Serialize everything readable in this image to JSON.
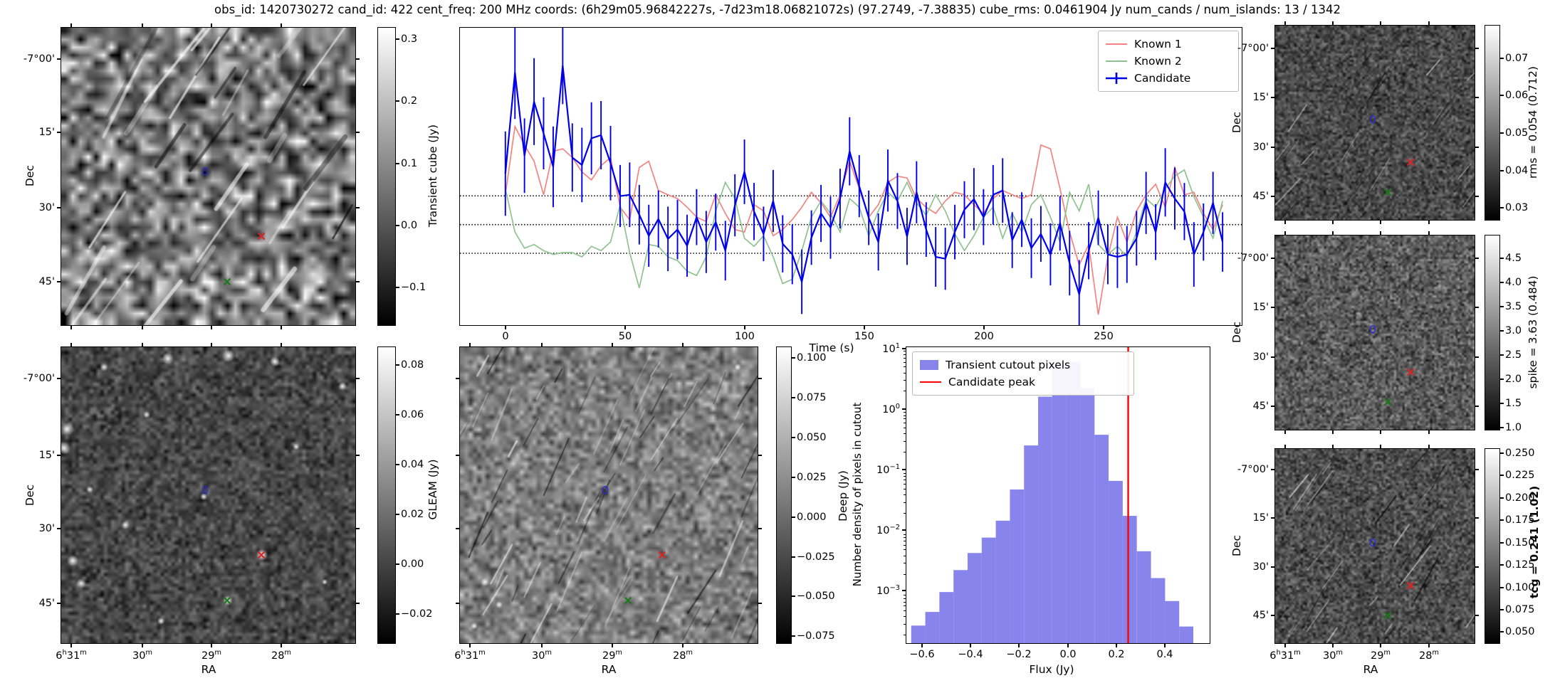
{
  "title": "obs_id: 1420730272 cand_id: 422 cent_freq: 200 MHz coords: (6h29m05.96842227s, -7d23m18.06821072s) (97.2749, -7.38835) cube_rms: 0.0461904 Jy num_cands / num_islands: 13 / 1342",
  "axes": {
    "dec_label": "Dec",
    "ra_label": "RA",
    "dec_ticks": [
      "-7°00'",
      "15'",
      "30'",
      "45'"
    ],
    "ra_ticks": [
      "6h31m",
      "30m",
      "29m",
      "28m"
    ]
  },
  "panels": {
    "transient_cube": {
      "colorbar_label": "Transient cube (Jy)",
      "colorbar_ticks": [
        "0.3",
        "0.2",
        "0.1",
        "0.0",
        "−0.1"
      ]
    },
    "gleam": {
      "colorbar_label": "GLEAM (Jy)",
      "colorbar_ticks": [
        "0.08",
        "0.06",
        "0.04",
        "0.02",
        "0.00",
        "−0.02"
      ]
    },
    "deep": {
      "colorbar_label": "Deep (Jy)",
      "colorbar_ticks": [
        "0.100",
        "0.075",
        "0.050",
        "0.025",
        "0.000",
        "−0.025",
        "−0.050",
        "−0.075"
      ]
    },
    "rms": {
      "colorbar_label": "rms = 0.054 (0.712)",
      "colorbar_ticks": [
        "0.07",
        "0.06",
        "0.05",
        "0.04",
        "0.03"
      ]
    },
    "spike": {
      "colorbar_label": "spike = 3.63 (0.484)",
      "colorbar_ticks": [
        "4.5",
        "4.0",
        "3.5",
        "3.0",
        "2.5",
        "2.0",
        "1.5",
        "1.0"
      ]
    },
    "tcg": {
      "colorbar_label": "tcg = 0.241 (1.02)",
      "colorbar_ticks": [
        "0.250",
        "0.225",
        "0.200",
        "0.175",
        "0.150",
        "0.125",
        "0.100",
        "0.075",
        "0.050"
      ]
    }
  },
  "markers": {
    "candidate": {
      "shape": "contour",
      "color": "#2a2ad0"
    },
    "known1": {
      "shape": "x",
      "color": "#dd2222"
    },
    "known2": {
      "shape": "x",
      "color": "#1a7a1a"
    }
  },
  "chart_data": [
    {
      "type": "line",
      "xlabel": "Time (s)",
      "x_ticks": [
        0,
        50,
        100,
        150,
        200,
        250
      ],
      "x_tick_labels": [
        "0",
        "50",
        "100",
        "150",
        "200",
        "250"
      ],
      "xlim": [
        -19,
        308
      ],
      "ylim_jy": [
        -0.162,
        0.317
      ],
      "dotted_hlines_jy": [
        0.0462,
        0,
        -0.0462
      ],
      "legend_position": "upper right",
      "x_start": 0,
      "x_step": 4,
      "series": [
        {
          "name": "Known 1",
          "color": "#f4837f",
          "values": [
            0.048,
            0.158,
            0.128,
            0.102,
            0.048,
            0.118,
            0.122,
            0.108,
            0.085,
            0.072,
            0.095,
            0.108,
            0.028,
            0.008,
            0.092,
            0.102,
            0.055,
            0.048,
            0.042,
            0.028,
            0.012,
            0.005,
            0.048,
            0.018,
            -0.008,
            -0.012,
            0.032,
            0.022,
            -0.018,
            -0.008,
            0.008,
            0.028,
            0.052,
            0.035,
            0.012,
            0.048,
            0.102,
            0.058,
            0.012,
            0.032,
            0.068,
            0.078,
            0.075,
            0.042,
            0.028,
            0.018,
            0.038,
            0.052,
            0.048,
            0.032,
            0.018,
            0.042,
            0.055,
            0.048,
            0.042,
            0.048,
            0.128,
            0.122,
            0.058,
            -0.012,
            -0.065,
            -0.032,
            -0.145,
            -0.052,
            0.012,
            -0.028,
            0.022,
            0.048,
            0.065,
            0.028,
            0.092,
            0.048,
            0.052,
            0.018,
            -0.008,
            0.032
          ]
        },
        {
          "name": "Known 2",
          "color": "#8fc28f",
          "values": [
            0.058,
            -0.012,
            -0.038,
            -0.032,
            -0.042,
            -0.048,
            -0.045,
            -0.045,
            -0.052,
            -0.035,
            -0.042,
            -0.028,
            0.032,
            -0.045,
            -0.102,
            -0.032,
            -0.035,
            -0.052,
            -0.058,
            -0.075,
            -0.082,
            -0.052,
            0.022,
            0.068,
            0.042,
            -0.022,
            -0.035,
            -0.018,
            -0.052,
            -0.095,
            -0.088,
            -0.042,
            0.012,
            0.038,
            0.018,
            -0.012,
            0.042,
            0.028,
            -0.018,
            0.022,
            0.052,
            0.038,
            0.068,
            0.035,
            0.015,
            0.048,
            0.022,
            -0.015,
            -0.042,
            -0.018,
            0.012,
            0.028,
            -0.022,
            0.018,
            -0.012,
            0.032,
            0.048,
            0.012,
            -0.028,
            0.052,
            0.022,
            0.065,
            -0.032,
            -0.048,
            -0.035,
            -0.052,
            -0.012,
            0.042,
            0.028,
            0.058,
            0.078,
            0.088,
            0.045,
            0.012,
            -0.022,
            0.038
          ]
        },
        {
          "name": "Candidate",
          "color": "#0000e8",
          "values": [
            0.082,
            0.245,
            0.111,
            0.198,
            0.147,
            0.093,
            0.256,
            0.108,
            0.096,
            0.139,
            0.144,
            0.099,
            0.046,
            0.048,
            0.016,
            -0.018,
            0.009,
            -0.023,
            -0.008,
            -0.034,
            0.012,
            -0.028,
            0.004,
            -0.042,
            0.031,
            0.085,
            0.021,
            -0.015,
            0.038,
            -0.031,
            -0.048,
            -0.092,
            -0.021,
            0.018,
            -0.005,
            0.042,
            0.118,
            0.062,
            0.011,
            -0.028,
            0.071,
            0.038,
            -0.019,
            0.052,
            -0.008,
            -0.052,
            -0.055,
            -0.012,
            0.024,
            0.041,
            0.012,
            0.048,
            0.055,
            -0.025,
            0.008,
            -0.038,
            -0.015,
            -0.048,
            0.002,
            -0.062,
            -0.112,
            -0.042,
            0.011,
            -0.048,
            -0.052,
            -0.048,
            -0.022,
            0.035,
            -0.012,
            0.068,
            0.042,
            0.021,
            -0.048,
            -0.012,
            0.035,
            -0.028
          ],
          "errors": [
            0.068,
            0.075,
            0.06,
            0.07,
            0.058,
            0.065,
            0.062,
            0.055,
            0.06,
            0.058,
            0.055,
            0.06,
            0.05,
            0.052,
            0.048,
            0.05,
            0.046,
            0.052,
            0.048,
            0.05,
            0.045,
            0.05,
            0.046,
            0.048,
            0.05,
            0.052,
            0.046,
            0.044,
            0.05,
            0.046,
            0.048,
            0.052,
            0.044,
            0.046,
            0.05,
            0.048,
            0.055,
            0.05,
            0.044,
            0.046,
            0.05,
            0.045,
            0.046,
            0.05,
            0.044,
            0.048,
            0.05,
            0.044,
            0.046,
            0.05,
            0.045,
            0.048,
            0.052,
            0.045,
            0.044,
            0.048,
            0.045,
            0.05,
            0.044,
            0.052,
            0.055,
            0.046,
            0.044,
            0.048,
            0.05,
            0.046,
            0.044,
            0.05,
            0.045,
            0.055,
            0.05,
            0.046,
            0.052,
            0.046,
            0.05,
            0.048
          ]
        }
      ],
      "legend": [
        "Known 1",
        "Known 2",
        "Candidate"
      ]
    },
    {
      "type": "bar",
      "xlabel": "Flux (Jy)",
      "ylabel": "Number density of pixels in cutout",
      "yscale": "log",
      "xlim": [
        -0.67,
        0.588
      ],
      "ylim": [
        0.00013,
        10
      ],
      "x_ticks": [
        -0.6,
        -0.4,
        -0.2,
        0.0,
        0.2,
        0.4
      ],
      "x_tick_labels": [
        "−0.6",
        "−0.4",
        "−0.2",
        "0.0",
        "0.2",
        "0.4"
      ],
      "y_tick_labels": [
        "10^1",
        "10^0",
        "10^-1",
        "10^-2",
        "10^-3"
      ],
      "bin_start": -0.65,
      "bin_width": 0.0585,
      "bar_color": "#8784ec",
      "values": [
        0.00028,
        0.00047,
        0.001,
        0.0023,
        0.0044,
        0.0079,
        0.015,
        0.049,
        0.26,
        1.66,
        5.5,
        6.2,
        2.3,
        0.39,
        0.068,
        0.018,
        0.0047,
        0.0017,
        0.00071,
        0.00027
      ],
      "candidate_peak": 0.25,
      "line_color": "#ff0000",
      "legend": [
        "Transient cutout pixels",
        "Candidate peak"
      ]
    }
  ]
}
